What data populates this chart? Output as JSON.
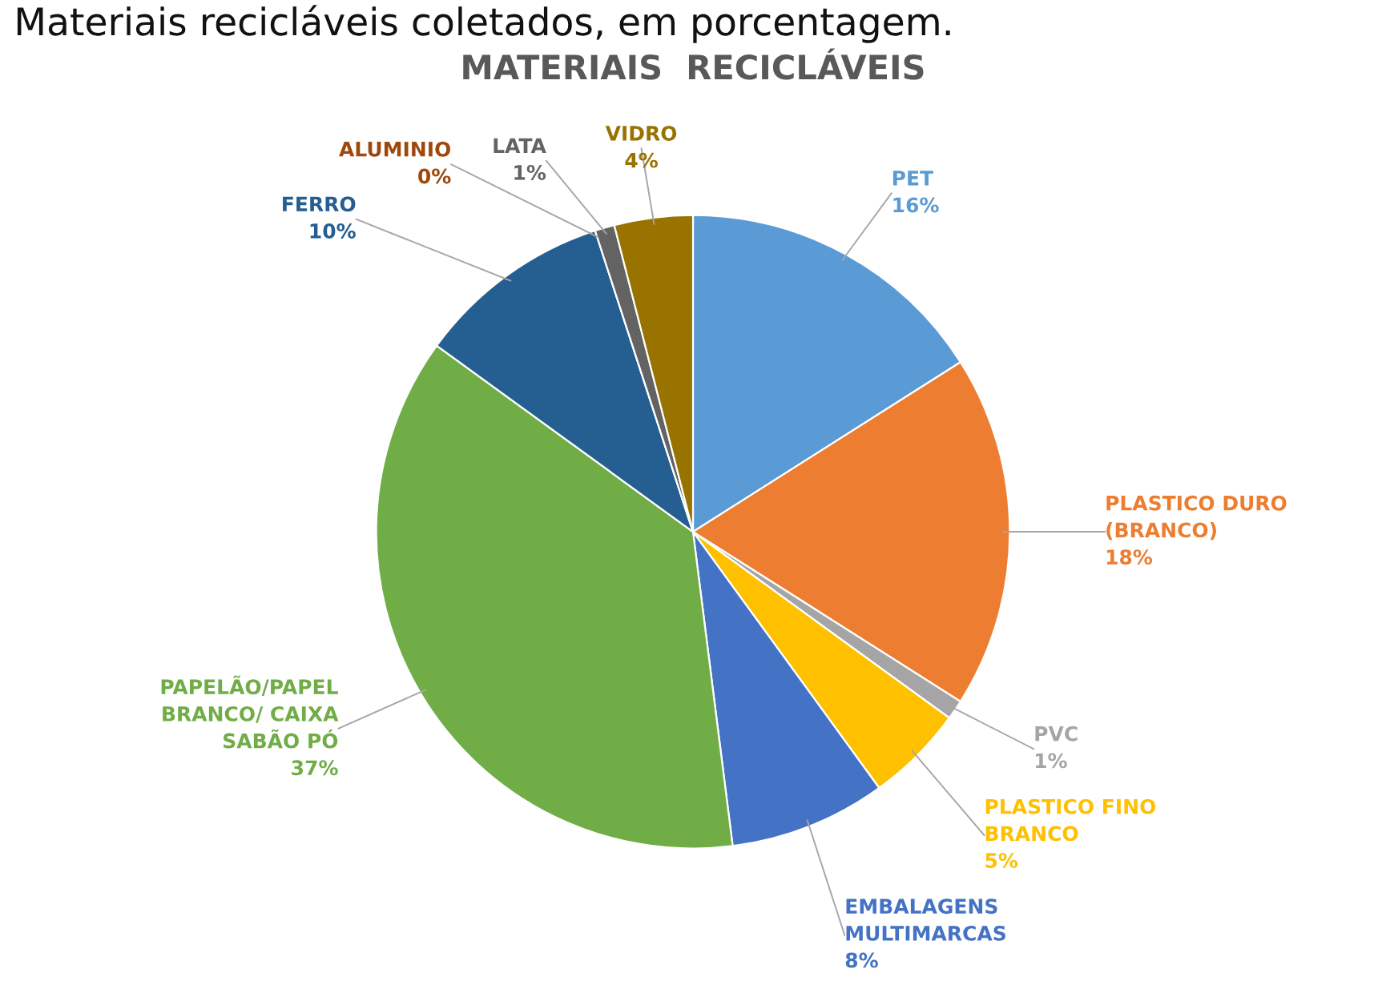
{
  "chart_data": {
    "type": "pie",
    "title": "MATERIAIS  RECICLÁVEIS",
    "annotations": [
      "Materiais recicláveis coletados, em porcentagem."
    ],
    "categories": [
      "PET",
      "PLASTICO DURO\n(BRANCO)",
      "PVC",
      "PLASTICO FINO\nBRANCO",
      "EMBALAGENS\nMULTIMARCAS",
      "PAPELÃO/PAPEL\nBRANCO/ CAIXA\nSABÃO PÓ",
      "FERRO",
      "ALUMINIO",
      "LATA",
      "VIDRO"
    ],
    "values": [
      16,
      18,
      1,
      5,
      8,
      37,
      10,
      0,
      1,
      4
    ],
    "colors": [
      "#5b9bd5",
      "#ed7d31",
      "#a5a5a5",
      "#ffc000",
      "#4472c4",
      "#70ad47",
      "#255e91",
      "#9e480e",
      "#636363",
      "#997300"
    ],
    "value_labels": [
      "16%",
      "18%",
      "1%",
      "5%",
      "8%",
      "37%",
      "10%",
      "0%",
      "1%",
      "4%"
    ],
    "legend": false
  }
}
